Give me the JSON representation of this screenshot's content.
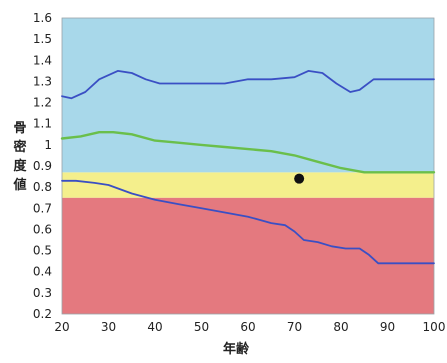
{
  "chart_data": {
    "type": "line",
    "ylabel": "骨密度値",
    "xlabel": "年齢",
    "xlim": [
      20,
      100
    ],
    "ylim": [
      0.2,
      1.6
    ],
    "xticks": [
      20,
      30,
      40,
      50,
      60,
      70,
      80,
      90,
      100
    ],
    "yticks": [
      "0.2",
      "0.3",
      "0.4",
      "0.5",
      "0.6",
      "0.7",
      "0.8",
      "0.9",
      "1",
      "1.1",
      "1.2",
      "1.3",
      "1.4",
      "1.5",
      "1.6"
    ],
    "bands": [
      {
        "from": 0.2,
        "to": 0.75,
        "color": "#e4797f"
      },
      {
        "from": 0.75,
        "to": 0.87,
        "color": "#f4ef8c"
      },
      {
        "from": 0.87,
        "to": 1.6,
        "color": "#a8d8ea"
      }
    ],
    "series": [
      {
        "color": "#3a4fc4",
        "x": [
          20,
          22,
          25,
          28,
          32,
          35,
          38,
          41,
          45,
          50,
          55,
          60,
          65,
          70,
          73,
          76,
          79,
          82,
          84,
          87,
          90,
          95,
          100
        ],
        "y": [
          1.23,
          1.22,
          1.25,
          1.31,
          1.35,
          1.34,
          1.31,
          1.29,
          1.29,
          1.29,
          1.29,
          1.31,
          1.31,
          1.32,
          1.35,
          1.34,
          1.29,
          1.25,
          1.26,
          1.31,
          1.31,
          1.31,
          1.31
        ]
      },
      {
        "color": "#6abf4b",
        "x": [
          20,
          24,
          28,
          31,
          35,
          40,
          45,
          50,
          55,
          60,
          65,
          70,
          75,
          80,
          85,
          90,
          95,
          100
        ],
        "y": [
          1.03,
          1.04,
          1.06,
          1.06,
          1.05,
          1.02,
          1.01,
          1.0,
          0.99,
          0.98,
          0.97,
          0.95,
          0.92,
          0.89,
          0.87,
          0.87,
          0.87,
          0.87
        ]
      },
      {
        "color": "#3a4fc4",
        "x": [
          20,
          23,
          27,
          30,
          35,
          40,
          45,
          50,
          55,
          60,
          65,
          68,
          70,
          72,
          75,
          78,
          81,
          84,
          86,
          88,
          90,
          95,
          100
        ],
        "y": [
          0.83,
          0.83,
          0.82,
          0.81,
          0.77,
          0.74,
          0.72,
          0.7,
          0.68,
          0.66,
          0.63,
          0.62,
          0.59,
          0.55,
          0.54,
          0.52,
          0.51,
          0.51,
          0.48,
          0.44,
          0.44,
          0.44,
          0.44
        ]
      }
    ],
    "points": [
      {
        "x": 71,
        "y": 0.84,
        "color": "#111111"
      }
    ]
  }
}
